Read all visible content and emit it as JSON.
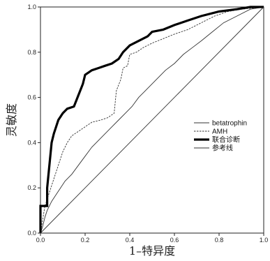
{
  "chart_data": {
    "type": "line",
    "xlabel": "1–特异度",
    "ylabel": "灵敏度",
    "xlim": [
      0,
      1
    ],
    "ylim": [
      0,
      1
    ],
    "x_ticks": [
      "0.0",
      "0.2",
      "0.4",
      "0.6",
      "0.8",
      "1.0"
    ],
    "y_ticks": [
      "0.0",
      "0.2",
      "0.4",
      "0.6",
      "0.8",
      "1.0"
    ],
    "grid": false,
    "legend": "bottom-right",
    "series": [
      {
        "name": "betatrophin",
        "style": "thin-solid",
        "color": "#333333",
        "points": [
          [
            0,
            0
          ],
          [
            0.01,
            0.03
          ],
          [
            0.02,
            0.07
          ],
          [
            0.03,
            0.1
          ],
          [
            0.05,
            0.14
          ],
          [
            0.07,
            0.17
          ],
          [
            0.09,
            0.2
          ],
          [
            0.11,
            0.23
          ],
          [
            0.14,
            0.26
          ],
          [
            0.17,
            0.3
          ],
          [
            0.2,
            0.34
          ],
          [
            0.23,
            0.38
          ],
          [
            0.26,
            0.41
          ],
          [
            0.29,
            0.44
          ],
          [
            0.32,
            0.47
          ],
          [
            0.35,
            0.5
          ],
          [
            0.38,
            0.53
          ],
          [
            0.41,
            0.56
          ],
          [
            0.44,
            0.6
          ],
          [
            0.47,
            0.63
          ],
          [
            0.5,
            0.66
          ],
          [
            0.53,
            0.69
          ],
          [
            0.56,
            0.72
          ],
          [
            0.6,
            0.75
          ],
          [
            0.64,
            0.79
          ],
          [
            0.68,
            0.82
          ],
          [
            0.72,
            0.85
          ],
          [
            0.77,
            0.89
          ],
          [
            0.82,
            0.93
          ],
          [
            0.88,
            0.96
          ],
          [
            0.94,
            0.99
          ],
          [
            1,
            1
          ]
        ]
      },
      {
        "name": "AMH",
        "style": "dashed",
        "color": "#333333",
        "points": [
          [
            0,
            0
          ],
          [
            0.01,
            0.06
          ],
          [
            0.02,
            0.12
          ],
          [
            0.04,
            0.18
          ],
          [
            0.06,
            0.24
          ],
          [
            0.08,
            0.3
          ],
          [
            0.1,
            0.36
          ],
          [
            0.12,
            0.4
          ],
          [
            0.14,
            0.43
          ],
          [
            0.17,
            0.45
          ],
          [
            0.2,
            0.47
          ],
          [
            0.23,
            0.49
          ],
          [
            0.27,
            0.5
          ],
          [
            0.3,
            0.51
          ],
          [
            0.33,
            0.53
          ],
          [
            0.34,
            0.63
          ],
          [
            0.36,
            0.68
          ],
          [
            0.37,
            0.73
          ],
          [
            0.39,
            0.74
          ],
          [
            0.4,
            0.79
          ],
          [
            0.43,
            0.8
          ],
          [
            0.46,
            0.82
          ],
          [
            0.5,
            0.84
          ],
          [
            0.55,
            0.86
          ],
          [
            0.6,
            0.88
          ],
          [
            0.66,
            0.9
          ],
          [
            0.72,
            0.93
          ],
          [
            0.78,
            0.96
          ],
          [
            0.84,
            0.98
          ],
          [
            0.9,
            0.99
          ],
          [
            1,
            1
          ]
        ]
      },
      {
        "name": "联合诊断",
        "style": "thick-solid",
        "color": "#000000",
        "points": [
          [
            0,
            0
          ],
          [
            0,
            0.12
          ],
          [
            0.03,
            0.12
          ],
          [
            0.03,
            0.2
          ],
          [
            0.04,
            0.3
          ],
          [
            0.05,
            0.4
          ],
          [
            0.06,
            0.44
          ],
          [
            0.07,
            0.47
          ],
          [
            0.08,
            0.5
          ],
          [
            0.1,
            0.53
          ],
          [
            0.12,
            0.55
          ],
          [
            0.15,
            0.56
          ],
          [
            0.17,
            0.61
          ],
          [
            0.19,
            0.66
          ],
          [
            0.2,
            0.7
          ],
          [
            0.23,
            0.72
          ],
          [
            0.26,
            0.73
          ],
          [
            0.29,
            0.74
          ],
          [
            0.32,
            0.75
          ],
          [
            0.35,
            0.77
          ],
          [
            0.37,
            0.8
          ],
          [
            0.4,
            0.83
          ],
          [
            0.44,
            0.85
          ],
          [
            0.48,
            0.87
          ],
          [
            0.5,
            0.89
          ],
          [
            0.55,
            0.9
          ],
          [
            0.6,
            0.92
          ],
          [
            0.66,
            0.94
          ],
          [
            0.72,
            0.96
          ],
          [
            0.8,
            0.98
          ],
          [
            0.88,
            0.99
          ],
          [
            0.94,
            1
          ],
          [
            1,
            1
          ]
        ]
      },
      {
        "name": "参考线",
        "style": "thin-solid",
        "color": "#333333",
        "points": [
          [
            0,
            0
          ],
          [
            1,
            1
          ]
        ]
      }
    ]
  }
}
